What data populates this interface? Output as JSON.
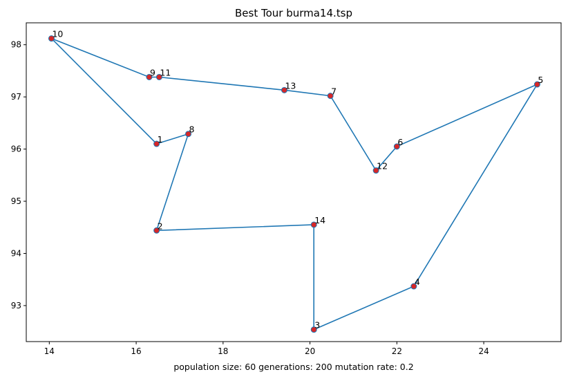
{
  "chart_data": {
    "type": "line",
    "title": "Best Tour burma14.tsp",
    "xlabel": "population size: 60 generations: 200 mutation rate: 0.2",
    "ylabel": "",
    "xlim": [
      13.47,
      25.78
    ],
    "ylim": [
      92.31,
      98.42
    ],
    "xticks": [
      14,
      16,
      18,
      20,
      22,
      24
    ],
    "yticks": [
      93,
      94,
      95,
      96,
      97,
      98
    ],
    "grid": false,
    "legend": "none",
    "line_color": "#1f77b4",
    "point_color": "#d62728",
    "points": [
      {
        "label": "1",
        "x": 16.47,
        "y": 96.1
      },
      {
        "label": "2",
        "x": 16.47,
        "y": 94.44
      },
      {
        "label": "3",
        "x": 20.09,
        "y": 92.54
      },
      {
        "label": "4",
        "x": 22.39,
        "y": 93.37
      },
      {
        "label": "5",
        "x": 25.23,
        "y": 97.24
      },
      {
        "label": "6",
        "x": 22.0,
        "y": 96.05
      },
      {
        "label": "7",
        "x": 20.47,
        "y": 97.02
      },
      {
        "label": "8",
        "x": 17.2,
        "y": 96.29
      },
      {
        "label": "9",
        "x": 16.3,
        "y": 97.38
      },
      {
        "label": "10",
        "x": 14.05,
        "y": 98.12
      },
      {
        "label": "11",
        "x": 16.53,
        "y": 97.38
      },
      {
        "label": "12",
        "x": 21.52,
        "y": 95.59
      },
      {
        "label": "13",
        "x": 19.41,
        "y": 97.13
      },
      {
        "label": "14",
        "x": 20.09,
        "y": 94.55
      }
    ],
    "tour": [
      "10",
      "9",
      "11",
      "13",
      "7",
      "12",
      "6",
      "5",
      "4",
      "3",
      "14",
      "2",
      "8",
      "1",
      "10"
    ]
  }
}
